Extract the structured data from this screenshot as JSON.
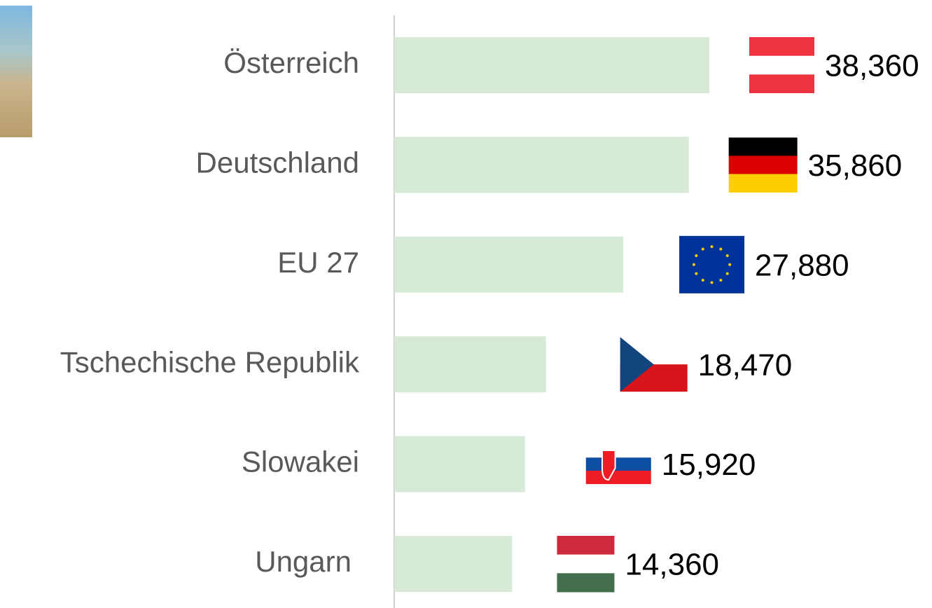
{
  "chart_data": {
    "type": "bar",
    "orientation": "horizontal",
    "categories": [
      "Österreich",
      "Deutschland",
      "EU 27",
      "Tschechische Republik",
      "Slowakei",
      "Ungarn"
    ],
    "values": [
      38360,
      35860,
      27880,
      18470,
      15920,
      14360
    ],
    "value_labels": [
      "38,360",
      "35,860",
      "27,880",
      "18,470",
      "15,920",
      "14,360"
    ],
    "color": "#d7e9d7"
  }
}
